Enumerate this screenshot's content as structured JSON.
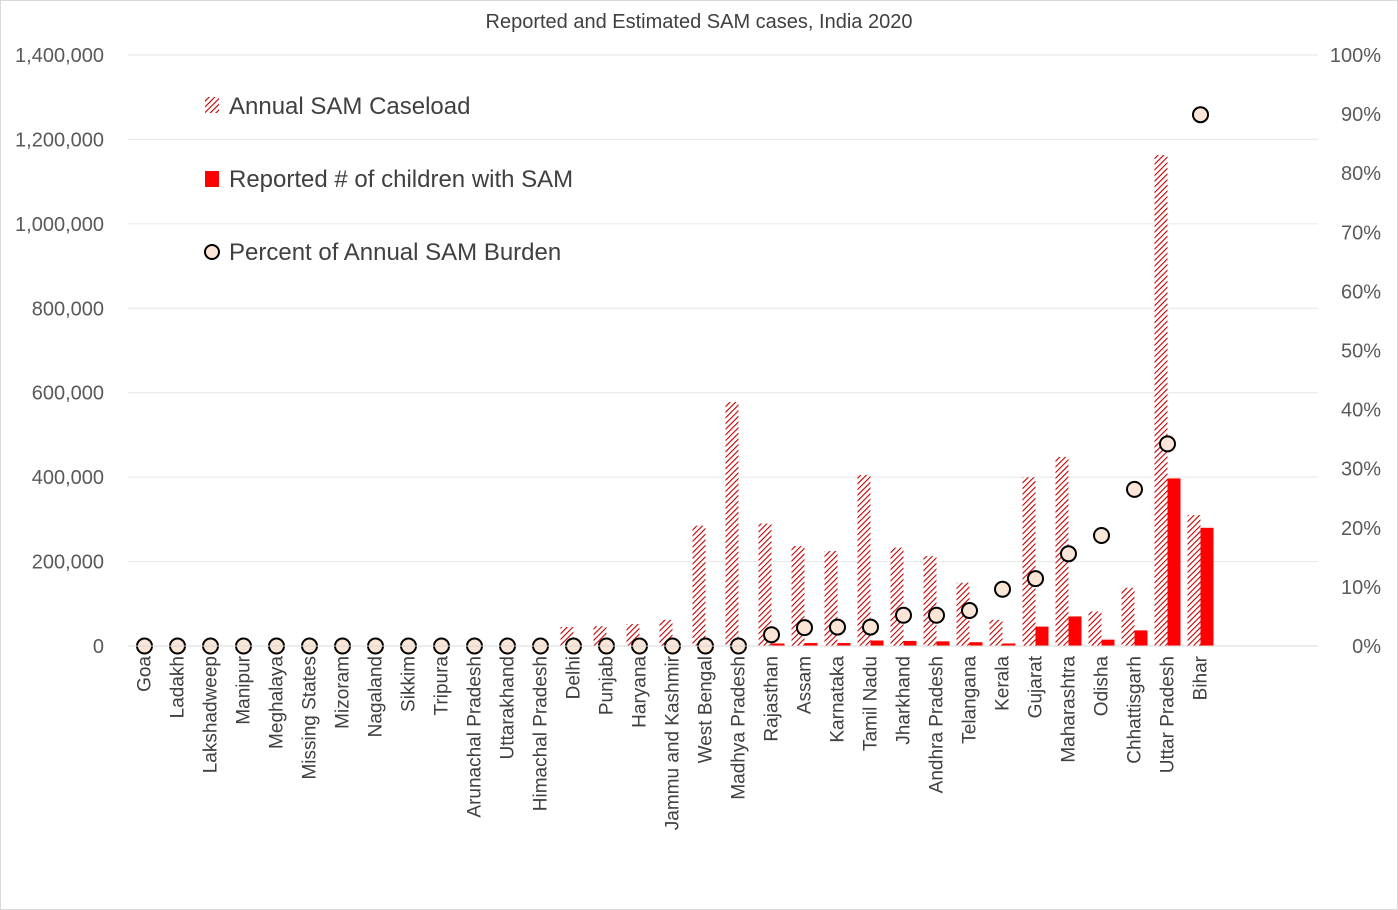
{
  "chart_data": {
    "type": "bar",
    "title": "Reported and Estimated SAM cases, India 2020",
    "categories": [
      "Goa",
      "Ladakh",
      "Lakshadweep",
      "Manipur",
      "Meghalaya",
      "Missing States",
      "Mizoram",
      "Nagaland",
      "Sikkim",
      "Tripura",
      "Arunachal Pradesh",
      "Uttarakhand",
      "Himachal Pradesh",
      "Delhi",
      "Punjab",
      "Haryana",
      "Jammu and Kashmir",
      "West Bengal",
      "Madhya Pradesh",
      "Rajasthan",
      "Assam",
      "Karnataka",
      "Tamil Nadu",
      "Jharkhand",
      "Andhra Pradesh",
      "Telangana",
      "Kerala",
      "Gujarat",
      "Maharashtra",
      "Odisha",
      "Chhattisgarh",
      "Uttar Pradesh",
      "Bihar"
    ],
    "series": [
      {
        "name": "Annual SAM Caseload",
        "axis": "left",
        "style": "hatched",
        "color": "#C00000",
        "values": [
          0,
          0,
          0,
          0,
          0,
          0,
          0,
          0,
          0,
          0,
          0,
          0,
          0,
          45000,
          47000,
          52000,
          62000,
          285000,
          578000,
          290000,
          237000,
          225000,
          405000,
          233000,
          213000,
          150000,
          62000,
          400000,
          448000,
          82000,
          138000,
          1163000,
          310000
        ]
      },
      {
        "name": "Reported # of children with SAM",
        "axis": "left",
        "style": "solid",
        "color": "#FF0000",
        "values": [
          0,
          0,
          0,
          0,
          0,
          0,
          0,
          0,
          0,
          0,
          0,
          0,
          0,
          0,
          0,
          0,
          0,
          0,
          0,
          6000,
          7000,
          7000,
          13000,
          12000,
          11000,
          9000,
          6000,
          46000,
          70000,
          15000,
          37000,
          397000,
          280000
        ]
      },
      {
        "name": "Percent of Annual SAM Burden",
        "axis": "right",
        "style": "marker",
        "color": "#FBE5D6",
        "values": [
          0,
          0,
          0,
          0,
          0,
          0,
          0,
          0,
          0,
          0,
          0,
          0,
          0,
          0,
          0,
          0,
          0,
          0,
          0,
          1.9,
          3.1,
          3.2,
          3.2,
          5.2,
          5.2,
          6.0,
          9.6,
          11.4,
          15.6,
          18.7,
          26.5,
          34.2,
          89.9
        ]
      }
    ],
    "y_left": {
      "ylim": [
        0,
        1400000
      ],
      "ticks": [
        0,
        200000,
        400000,
        600000,
        800000,
        1000000,
        1200000,
        1400000
      ],
      "tick_labels": [
        "0",
        "200,000",
        "400,000",
        "600,000",
        "800,000",
        "1,000,000",
        "1,200,000",
        "1,400,000"
      ]
    },
    "y_right": {
      "ylim": [
        0,
        100
      ],
      "ticks": [
        0,
        10,
        20,
        30,
        40,
        50,
        60,
        70,
        80,
        90,
        100
      ],
      "tick_labels": [
        "0%",
        "10%",
        "20%",
        "30%",
        "40%",
        "50%",
        "60%",
        "70%",
        "80%",
        "90%",
        "100%"
      ]
    },
    "grid": true,
    "legend_position": "top-left"
  }
}
